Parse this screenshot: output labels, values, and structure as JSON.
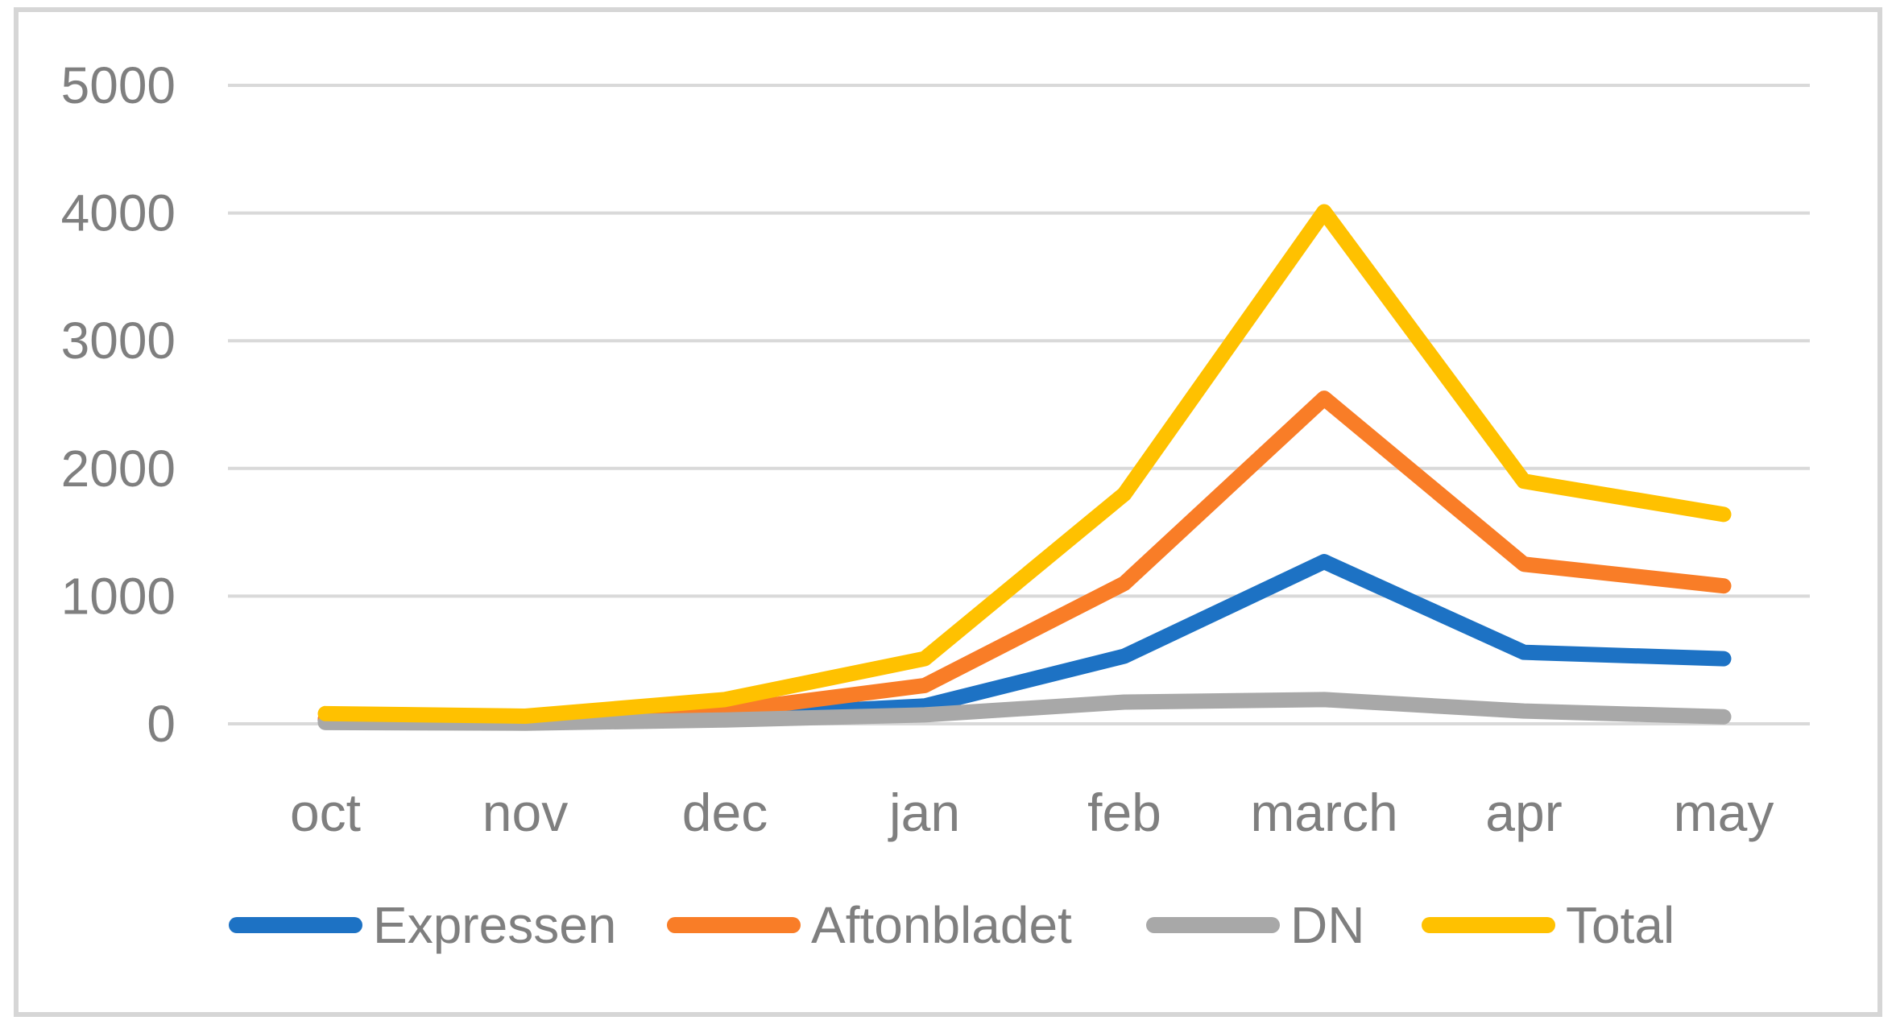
{
  "chart_data": {
    "type": "line",
    "categories": [
      "oct",
      "nov",
      "dec",
      "jan",
      "feb",
      "march",
      "apr",
      "may"
    ],
    "series": [
      {
        "name": "Expressen",
        "color": "#1d72c4",
        "values": [
          30,
          20,
          60,
          140,
          530,
          1270,
          560,
          510
        ]
      },
      {
        "name": "Aftonbladet",
        "color": "#f97d27",
        "values": [
          40,
          30,
          100,
          300,
          1100,
          2550,
          1250,
          1080
        ]
      },
      {
        "name": "DN",
        "color": "#a8a8a8",
        "values": [
          10,
          5,
          30,
          70,
          170,
          190,
          100,
          55
        ]
      },
      {
        "name": "Total",
        "color": "#ffc100",
        "values": [
          80,
          60,
          190,
          510,
          1800,
          4010,
          1900,
          1640
        ]
      }
    ],
    "title": "",
    "xlabel": "",
    "ylabel": "",
    "ylim": [
      0,
      5000
    ],
    "yticks": [
      0,
      1000,
      2000,
      3000,
      4000,
      5000
    ],
    "grid": "horizontal",
    "legend_position": "bottom"
  },
  "colors": {
    "background": "#ffffff",
    "frame_border": "#d6d6d6",
    "gridline": "#d9d9d9",
    "axis_text": "#7f7f7f"
  }
}
